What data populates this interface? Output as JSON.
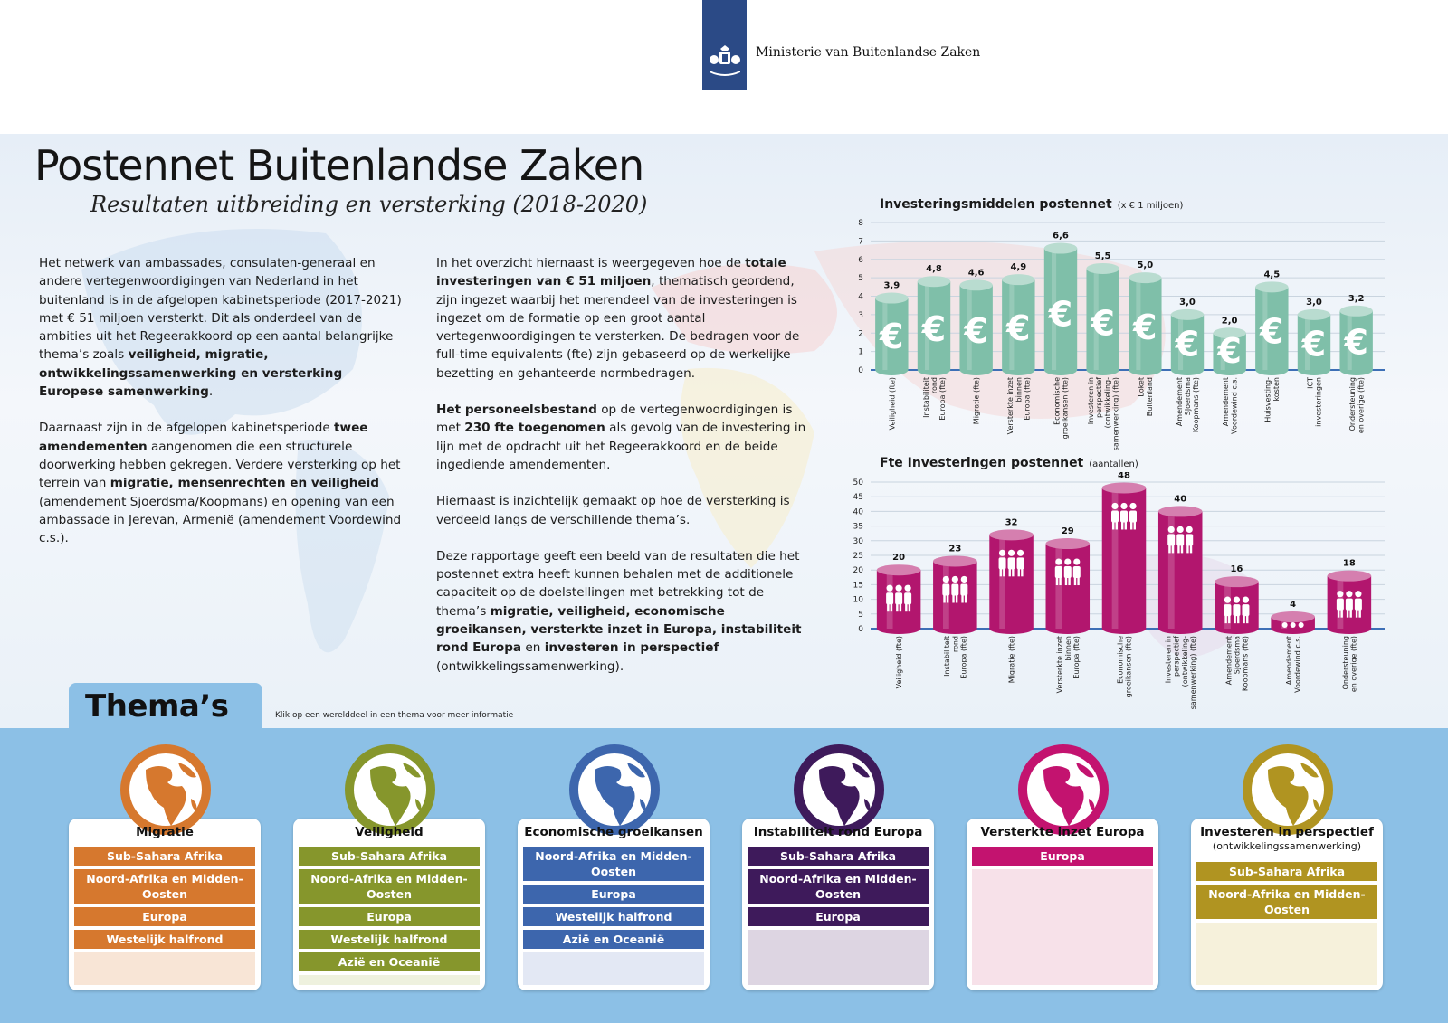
{
  "header": {
    "ministry": "Ministerie van Buitenlandse Zaken"
  },
  "title": "Postennet Buitenlandse Zaken",
  "subtitle": "Resultaten uitbreiding en versterking (2018-2020)",
  "intro_col1": [
    [
      {
        "t": "Het netwerk van ambassades, consulaten-generaal en andere vertegenwoordigingen van Nederland in het buitenland is in de afgelopen kabinetsperiode (2017-2021) met € 51 miljoen versterkt. Dit als onderdeel van de ambities uit het Regeerakkoord op een aantal belangrijke thema’s zoals "
      },
      {
        "t": "veiligheid, migratie, ontwikkelingssamenwerking en versterking Europese samenwerking",
        "b": true
      },
      {
        "t": "."
      }
    ],
    [
      {
        "t": "Daarnaast zijn in de afgelopen kabinetsperiode "
      },
      {
        "t": "twee amendementen",
        "b": true
      },
      {
        "t": " aangenomen die een structurele doorwerking hebben gekregen. Verdere versterking op het terrein van "
      },
      {
        "t": "migratie, mensenrechten en veiligheid",
        "b": true
      },
      {
        "t": " (amendement Sjoerdsma/Koopmans) en opening van een ambassade in Jerevan, Armenië (amendement Voordewind c.s.)."
      }
    ]
  ],
  "intro_col2": [
    [
      {
        "t": "In het overzicht hiernaast is weergegeven hoe de "
      },
      {
        "t": "totale investeringen van € 51 miljoen",
        "b": true
      },
      {
        "t": ", thematisch geordend, zijn ingezet waarbij het merendeel van de investeringen is ingezet om de formatie op een groot aantal vertegenwoordigingen te versterken. De bedragen voor de full-time equivalents (fte) zijn gebaseerd op de werkelijke bezetting en gehanteerde normbedragen."
      }
    ],
    [
      {
        "t": "Het personeelsbestand",
        "b": true
      },
      {
        "t": " op de vertegenwoordigingen is met "
      },
      {
        "t": "230 fte toegenomen",
        "b": true
      },
      {
        "t": " als gevolg van de investering in lijn met de opdracht uit het Regeerakkoord en de beide ingediende amendementen."
      }
    ],
    [
      {
        "t": "Hiernaast is inzichtelijk gemaakt op hoe de versterking is verdeeld langs de verschillende thema’s."
      }
    ],
    [
      {
        "t": "Deze rapportage geeft een beeld van de resultaten die het postennet extra heeft kunnen behalen met de additionele capaciteit op de doelstellingen met betrekking tot de thema’s "
      },
      {
        "t": "migratie, veiligheid, economische groeikansen, versterkte inzet in Europa, instabiliteit rond Europa",
        "b": true
      },
      {
        "t": " en "
      },
      {
        "t": "investeren in perspectief",
        "b": true
      },
      {
        "t": " (ontwikkelingssamenwerking)."
      }
    ]
  ],
  "chart_data": [
    {
      "type": "bar",
      "title": "Investeringsmiddelen postennet",
      "unit": "(x € 1 miljoen)",
      "categories": [
        [
          "Veiligheid (fte)"
        ],
        [
          "Instabiliteit",
          "rond",
          "Europa (fte)"
        ],
        [
          "Migratie (fte)"
        ],
        [
          "Versterkte inzet",
          "binnen",
          "Europa (fte)"
        ],
        [
          "Economische",
          "groeikansen (fte)"
        ],
        [
          "Investeren in",
          "perspectief",
          "(ontwikkeling-",
          "samenwerking) (fte)"
        ],
        [
          "Loket",
          "Buitenland"
        ],
        [
          "Amendement",
          "Sjoerdsma",
          "Koopmans (fte)"
        ],
        [
          "Amendement",
          "Voordewind c.s."
        ],
        [
          "Huisvesting-",
          "kosten"
        ],
        [
          "ICT",
          "investeringen"
        ],
        [
          "Ondersteuning",
          "en overige (fte)"
        ]
      ],
      "values": [
        3.9,
        4.8,
        4.6,
        4.9,
        6.6,
        5.5,
        5.0,
        3.0,
        2.0,
        4.5,
        3.0,
        3.2
      ],
      "labels": [
        "3,9",
        "4,8",
        "4,6",
        "4,9",
        "6,6",
        "5,5",
        "5,0",
        "3,0",
        "2,0",
        "4,5",
        "3,0",
        "3,2"
      ],
      "yticks": [
        0,
        1,
        2,
        3,
        4,
        5,
        6,
        7,
        8
      ],
      "ylim": [
        0,
        8
      ],
      "grid": true,
      "icon": "euro-icon",
      "color": "#7fbfa9"
    },
    {
      "type": "bar",
      "title": "Fte Investeringen postennet",
      "unit": "(aantallen)",
      "categories": [
        [
          "Veiligheid (fte)"
        ],
        [
          "Instabiliteit",
          "rond",
          "Europa (fte)"
        ],
        [
          "Migratie (fte)"
        ],
        [
          "Versterkte inzet",
          "binnen",
          "Europa (fte)"
        ],
        [
          "Economische",
          "groeikansen (fte)"
        ],
        [
          "Investeren in",
          "perspectief",
          "(ontwikkeling-",
          "samenwerking) (fte)"
        ],
        [
          "Amendement",
          "Sjoerdsma",
          "Koopmans (fte)"
        ],
        [
          "Amendement",
          "Voordewind c.s."
        ],
        [
          "Ondersteuning",
          "en overige (fte)"
        ]
      ],
      "values": [
        20,
        23,
        32,
        29,
        48,
        40,
        16,
        4,
        18
      ],
      "labels": [
        "20",
        "23",
        "32",
        "29",
        "48",
        "40",
        "16",
        "4",
        "18"
      ],
      "yticks": [
        0,
        5,
        10,
        15,
        20,
        25,
        30,
        35,
        40,
        45,
        50
      ],
      "ylim": [
        0,
        50
      ],
      "grid": true,
      "icon": "people-icon",
      "color": "#b2166e"
    }
  ],
  "themas": {
    "title": "Thema’s",
    "hint": "Klik op een werelddeel in een thema voor meer informatie",
    "cards": [
      {
        "title": "Migratie",
        "sub": "",
        "color": "#d6782e",
        "light": "#f8e5d6",
        "items": [
          "Sub-Sahara Afrika",
          "Noord-Afrika en Midden-Oosten",
          "Europa",
          "Westelijk halfrond"
        ]
      },
      {
        "title": "Veiligheid",
        "sub": "",
        "color": "#86962c",
        "light": "#eef1de",
        "items": [
          "Sub-Sahara Afrika",
          "Noord-Afrika en Midden-Oosten",
          "Europa",
          "Westelijk halfrond",
          "Azië en Oceanië"
        ]
      },
      {
        "title": "Economische groeikansen",
        "sub": "",
        "color": "#3d66ad",
        "light": "#e3e8f4",
        "items": [
          "Noord-Afrika en Midden-Oosten",
          "Europa",
          "Westelijk halfrond",
          "Azië en Oceanië"
        ]
      },
      {
        "title": "Instabiliteit rond Europa",
        "sub": "",
        "color": "#3e1a5b",
        "light": "#ddd5e2",
        "items": [
          "Sub-Sahara Afrika",
          "Noord-Afrika en Midden-Oosten",
          "Europa"
        ]
      },
      {
        "title": "Versterkte inzet Europa",
        "sub": "",
        "color": "#c3136f",
        "light": "#f7e1e9",
        "items": [
          "Europa"
        ]
      },
      {
        "title": "Investeren in perspectief",
        "sub": "(ontwikkelingssamenwerking)",
        "color": "#b09421",
        "light": "#f6f1db",
        "items": [
          "Sub-Sahara Afrika",
          "Noord-Afrika en Midden-Oosten"
        ]
      }
    ]
  }
}
